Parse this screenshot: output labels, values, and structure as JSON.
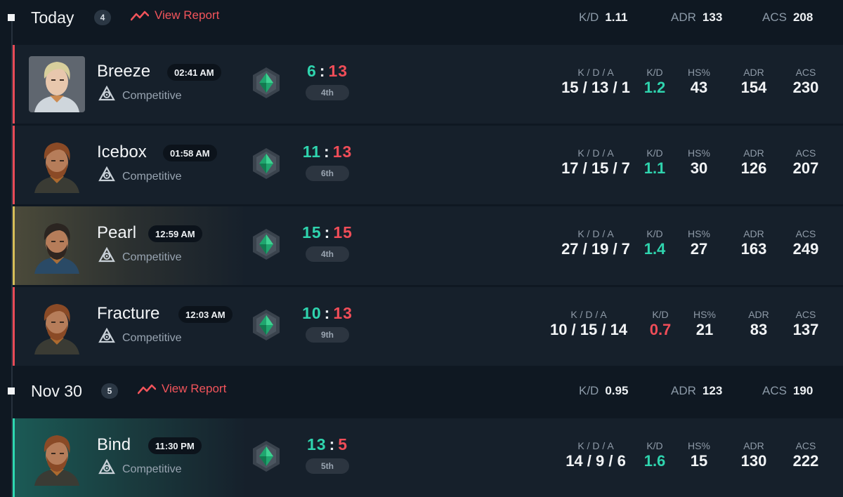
{
  "days": [
    {
      "title": "Today",
      "count": "4",
      "report_label": "View Report",
      "kd_label": "K/D",
      "kd_value": "1.11",
      "adr_label": "ADR",
      "adr_value": "133",
      "acs_label": "ACS",
      "acs_value": "208"
    },
    {
      "title": "Nov 30",
      "count": "5",
      "report_label": "View Report",
      "kd_label": "K/D",
      "kd_value": "0.95",
      "adr_label": "ADR",
      "adr_value": "123",
      "acs_label": "ACS",
      "acs_value": "190"
    }
  ],
  "labels": {
    "kda": "K / D / A",
    "kd": "K/D",
    "hs": "HS%",
    "adr": "ADR",
    "acs": "ACS"
  },
  "matches": [
    {
      "map": "Breeze",
      "time": "02:41 AM",
      "mode": "Competitive",
      "agent_icon": "blond-agent-portrait",
      "result": "loss",
      "score_a": "6",
      "score_b": "13",
      "place": "4th",
      "kda": "15 / 13 / 1",
      "kd": "1.2",
      "hs": "43",
      "adr": "154",
      "acs": "230"
    },
    {
      "map": "Icebox",
      "time": "01:58 AM",
      "mode": "Competitive",
      "agent_icon": "bearded-agent-portrait",
      "result": "loss",
      "score_a": "11",
      "score_b": "13",
      "place": "6th",
      "kda": "17 / 15 / 7",
      "kd": "1.1",
      "hs": "30",
      "adr": "126",
      "acs": "207"
    },
    {
      "map": "Pearl",
      "time": "12:59 AM",
      "mode": "Competitive",
      "agent_icon": "dark-haired-agent-portrait",
      "result": "draw",
      "score_a": "15",
      "score_b": "15",
      "place": "4th",
      "kda": "27 / 19 / 7",
      "kd": "1.4",
      "hs": "27",
      "adr": "163",
      "acs": "249"
    },
    {
      "map": "Fracture",
      "time": "12:03 AM",
      "mode": "Competitive",
      "agent_icon": "bearded-agent-portrait",
      "result": "loss",
      "score_a": "10",
      "score_b": "13",
      "place": "9th",
      "kda": "10 / 15 / 14",
      "kd": "0.7",
      "hs": "21",
      "adr": "83",
      "acs": "137"
    },
    {
      "map": "Bind",
      "time": "11:30 PM",
      "mode": "Competitive",
      "agent_icon": "bearded-agent-portrait",
      "result": "win",
      "score_a": "13",
      "score_b": "5",
      "place": "5th",
      "kda": "14 / 9 / 6",
      "kd": "1.6",
      "hs": "15",
      "adr": "130",
      "acs": "222"
    }
  ],
  "colors": {
    "win": "#2fd4ae",
    "loss": "#f04d58",
    "draw": "#d6be58",
    "report": "#f2545b",
    "background": "#0f1822"
  },
  "icons": {
    "mode": "competitive-mode-icon",
    "rank": "emerald-rank-icon",
    "report": "trend-line-icon"
  }
}
